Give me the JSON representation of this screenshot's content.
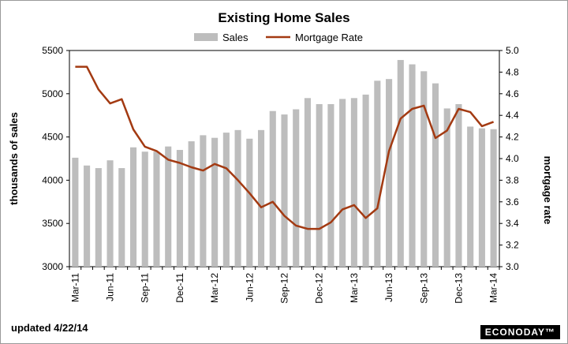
{
  "chart_data": {
    "type": "bar+line",
    "title": "Existing Home Sales",
    "legend": [
      "Sales",
      "Mortgage Rate"
    ],
    "legend_position": "top-center",
    "ylabel_left": "thousands of sales",
    "ylabel_right": "mortgage rate",
    "ylim_left": [
      3000,
      5500
    ],
    "ylim_right": [
      3.0,
      5.0
    ],
    "left_ticks": [
      "3000",
      "3500",
      "4000",
      "4500",
      "5000",
      "5500"
    ],
    "right_ticks": [
      "3.0",
      "3.2",
      "3.4",
      "3.6",
      "3.8",
      "4.0",
      "4.2",
      "4.4",
      "4.6",
      "4.8",
      "5.0"
    ],
    "x_tick_labels": [
      "Mar-11",
      "Jun-11",
      "Sep-11",
      "Dec-11",
      "Mar-12",
      "Jun-12",
      "Sep-12",
      "Dec-12",
      "Mar-13",
      "Jun-13",
      "Sep-13",
      "Dec-13",
      "Mar-14"
    ],
    "categories": [
      "Mar-11",
      "Apr-11",
      "May-11",
      "Jun-11",
      "Jul-11",
      "Aug-11",
      "Sep-11",
      "Oct-11",
      "Nov-11",
      "Dec-11",
      "Jan-12",
      "Feb-12",
      "Mar-12",
      "Apr-12",
      "May-12",
      "Jun-12",
      "Jul-12",
      "Aug-12",
      "Sep-12",
      "Oct-12",
      "Nov-12",
      "Dec-12",
      "Jan-13",
      "Feb-13",
      "Mar-13",
      "Apr-13",
      "May-13",
      "Jun-13",
      "Jul-13",
      "Aug-13",
      "Sep-13",
      "Oct-13",
      "Nov-13",
      "Dec-13",
      "Jan-14",
      "Feb-14",
      "Mar-14"
    ],
    "series": [
      {
        "name": "Sales",
        "type": "bar",
        "axis": "left",
        "color": "#bdbdbd",
        "values": [
          4260,
          4170,
          4140,
          4230,
          4140,
          4380,
          4330,
          4330,
          4390,
          4350,
          4450,
          4520,
          4490,
          4550,
          4580,
          4480,
          4580,
          4800,
          4760,
          4820,
          4950,
          4880,
          4880,
          4940,
          4950,
          4990,
          5150,
          5170,
          5390,
          5340,
          5260,
          5120,
          4830,
          4880,
          4620,
          4600,
          4590
        ]
      },
      {
        "name": "Mortgage Rate",
        "type": "line",
        "axis": "right",
        "color": "#a33a12",
        "values": [
          4.85,
          4.85,
          4.64,
          4.51,
          4.55,
          4.27,
          4.11,
          4.07,
          3.99,
          3.96,
          3.92,
          3.89,
          3.95,
          3.91,
          3.8,
          3.68,
          3.55,
          3.6,
          3.47,
          3.38,
          3.35,
          3.35,
          3.41,
          3.53,
          3.57,
          3.45,
          3.54,
          4.07,
          4.37,
          4.46,
          4.49,
          4.19,
          4.26,
          4.46,
          4.43,
          4.3,
          4.34
        ]
      }
    ]
  },
  "footer": {
    "updated": "updated 4/22/14",
    "brand": "ECONODAY™"
  }
}
